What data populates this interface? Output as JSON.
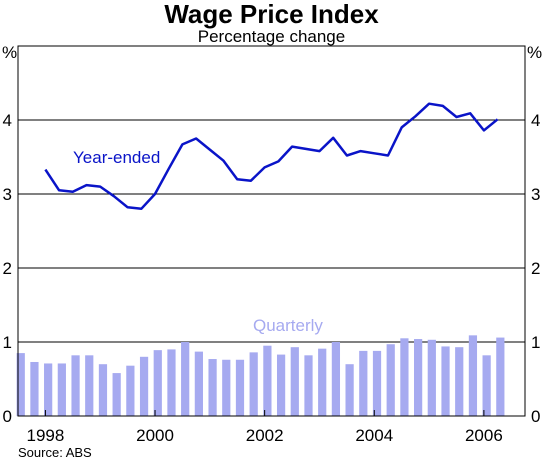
{
  "chart_data": {
    "type": "bar+line",
    "title": "Wage Price Index",
    "subtitle": "Percentage change",
    "y_unit_left": "%",
    "y_unit_right": "%",
    "ylim": [
      0,
      5
    ],
    "yticks": [
      "0",
      "1",
      "2",
      "3",
      "4"
    ],
    "xlim": [
      1997.5,
      2006.75
    ],
    "xticks": [
      {
        "value": 1998,
        "label": "1998"
      },
      {
        "value": 2000,
        "label": "2000"
      },
      {
        "value": 2002,
        "label": "2002"
      },
      {
        "value": 2004,
        "label": "2004"
      },
      {
        "value": 2006,
        "label": "2006"
      }
    ],
    "grid": true,
    "source": "Source: ABS",
    "colors": {
      "year_ended": "#0a14c8",
      "quarterly": "#a6aaf0"
    },
    "series": [
      {
        "name": "Year-ended",
        "type": "line",
        "x": [
          1998.0,
          1998.25,
          1998.5,
          1998.75,
          1999.0,
          1999.25,
          1999.5,
          1999.75,
          2000.0,
          2000.25,
          2000.5,
          2000.75,
          2001.0,
          2001.25,
          2001.5,
          2001.75,
          2002.0,
          2002.25,
          2002.5,
          2002.75,
          2003.0,
          2003.25,
          2003.5,
          2003.75,
          2004.0,
          2004.25,
          2004.5,
          2004.75,
          2005.0,
          2005.25,
          2005.5,
          2005.75,
          2006.0,
          2006.25,
          2006.5
        ],
        "values": [
          3.33,
          3.05,
          3.03,
          3.12,
          3.1,
          2.97,
          2.82,
          2.8,
          3.0,
          3.34,
          3.67,
          3.75,
          3.6,
          3.45,
          3.2,
          3.18,
          3.36,
          3.44,
          3.64,
          3.61,
          3.58,
          3.76,
          3.52,
          3.58,
          3.55,
          3.52,
          3.9,
          4.05,
          4.22,
          4.19,
          4.04,
          4.09,
          3.86,
          4.01,
          null
        ]
      },
      {
        "name": "Quarterly",
        "type": "bar",
        "x": [
          1997.5,
          1997.75,
          1998.0,
          1998.25,
          1998.5,
          1998.75,
          1999.0,
          1999.25,
          1999.5,
          1999.75,
          2000.0,
          2000.25,
          2000.5,
          2000.75,
          2001.0,
          2001.25,
          2001.5,
          2001.75,
          2002.0,
          2002.25,
          2002.5,
          2002.75,
          2003.0,
          2003.25,
          2003.5,
          2003.75,
          2004.0,
          2004.25,
          2004.5,
          2004.75,
          2005.0,
          2005.25,
          2005.5,
          2005.75,
          2006.0,
          2006.25,
          2006.5
        ],
        "values": [
          0.85,
          0.73,
          0.71,
          0.71,
          0.82,
          0.82,
          0.7,
          0.58,
          0.68,
          0.8,
          0.89,
          0.9,
          1.0,
          0.87,
          0.77,
          0.76,
          0.76,
          0.86,
          0.95,
          0.83,
          0.93,
          0.82,
          0.91,
          1.0,
          0.7,
          0.88,
          0.88,
          0.97,
          1.05,
          1.04,
          1.03,
          0.94,
          0.93,
          1.09,
          0.82,
          1.06,
          null
        ]
      }
    ]
  }
}
